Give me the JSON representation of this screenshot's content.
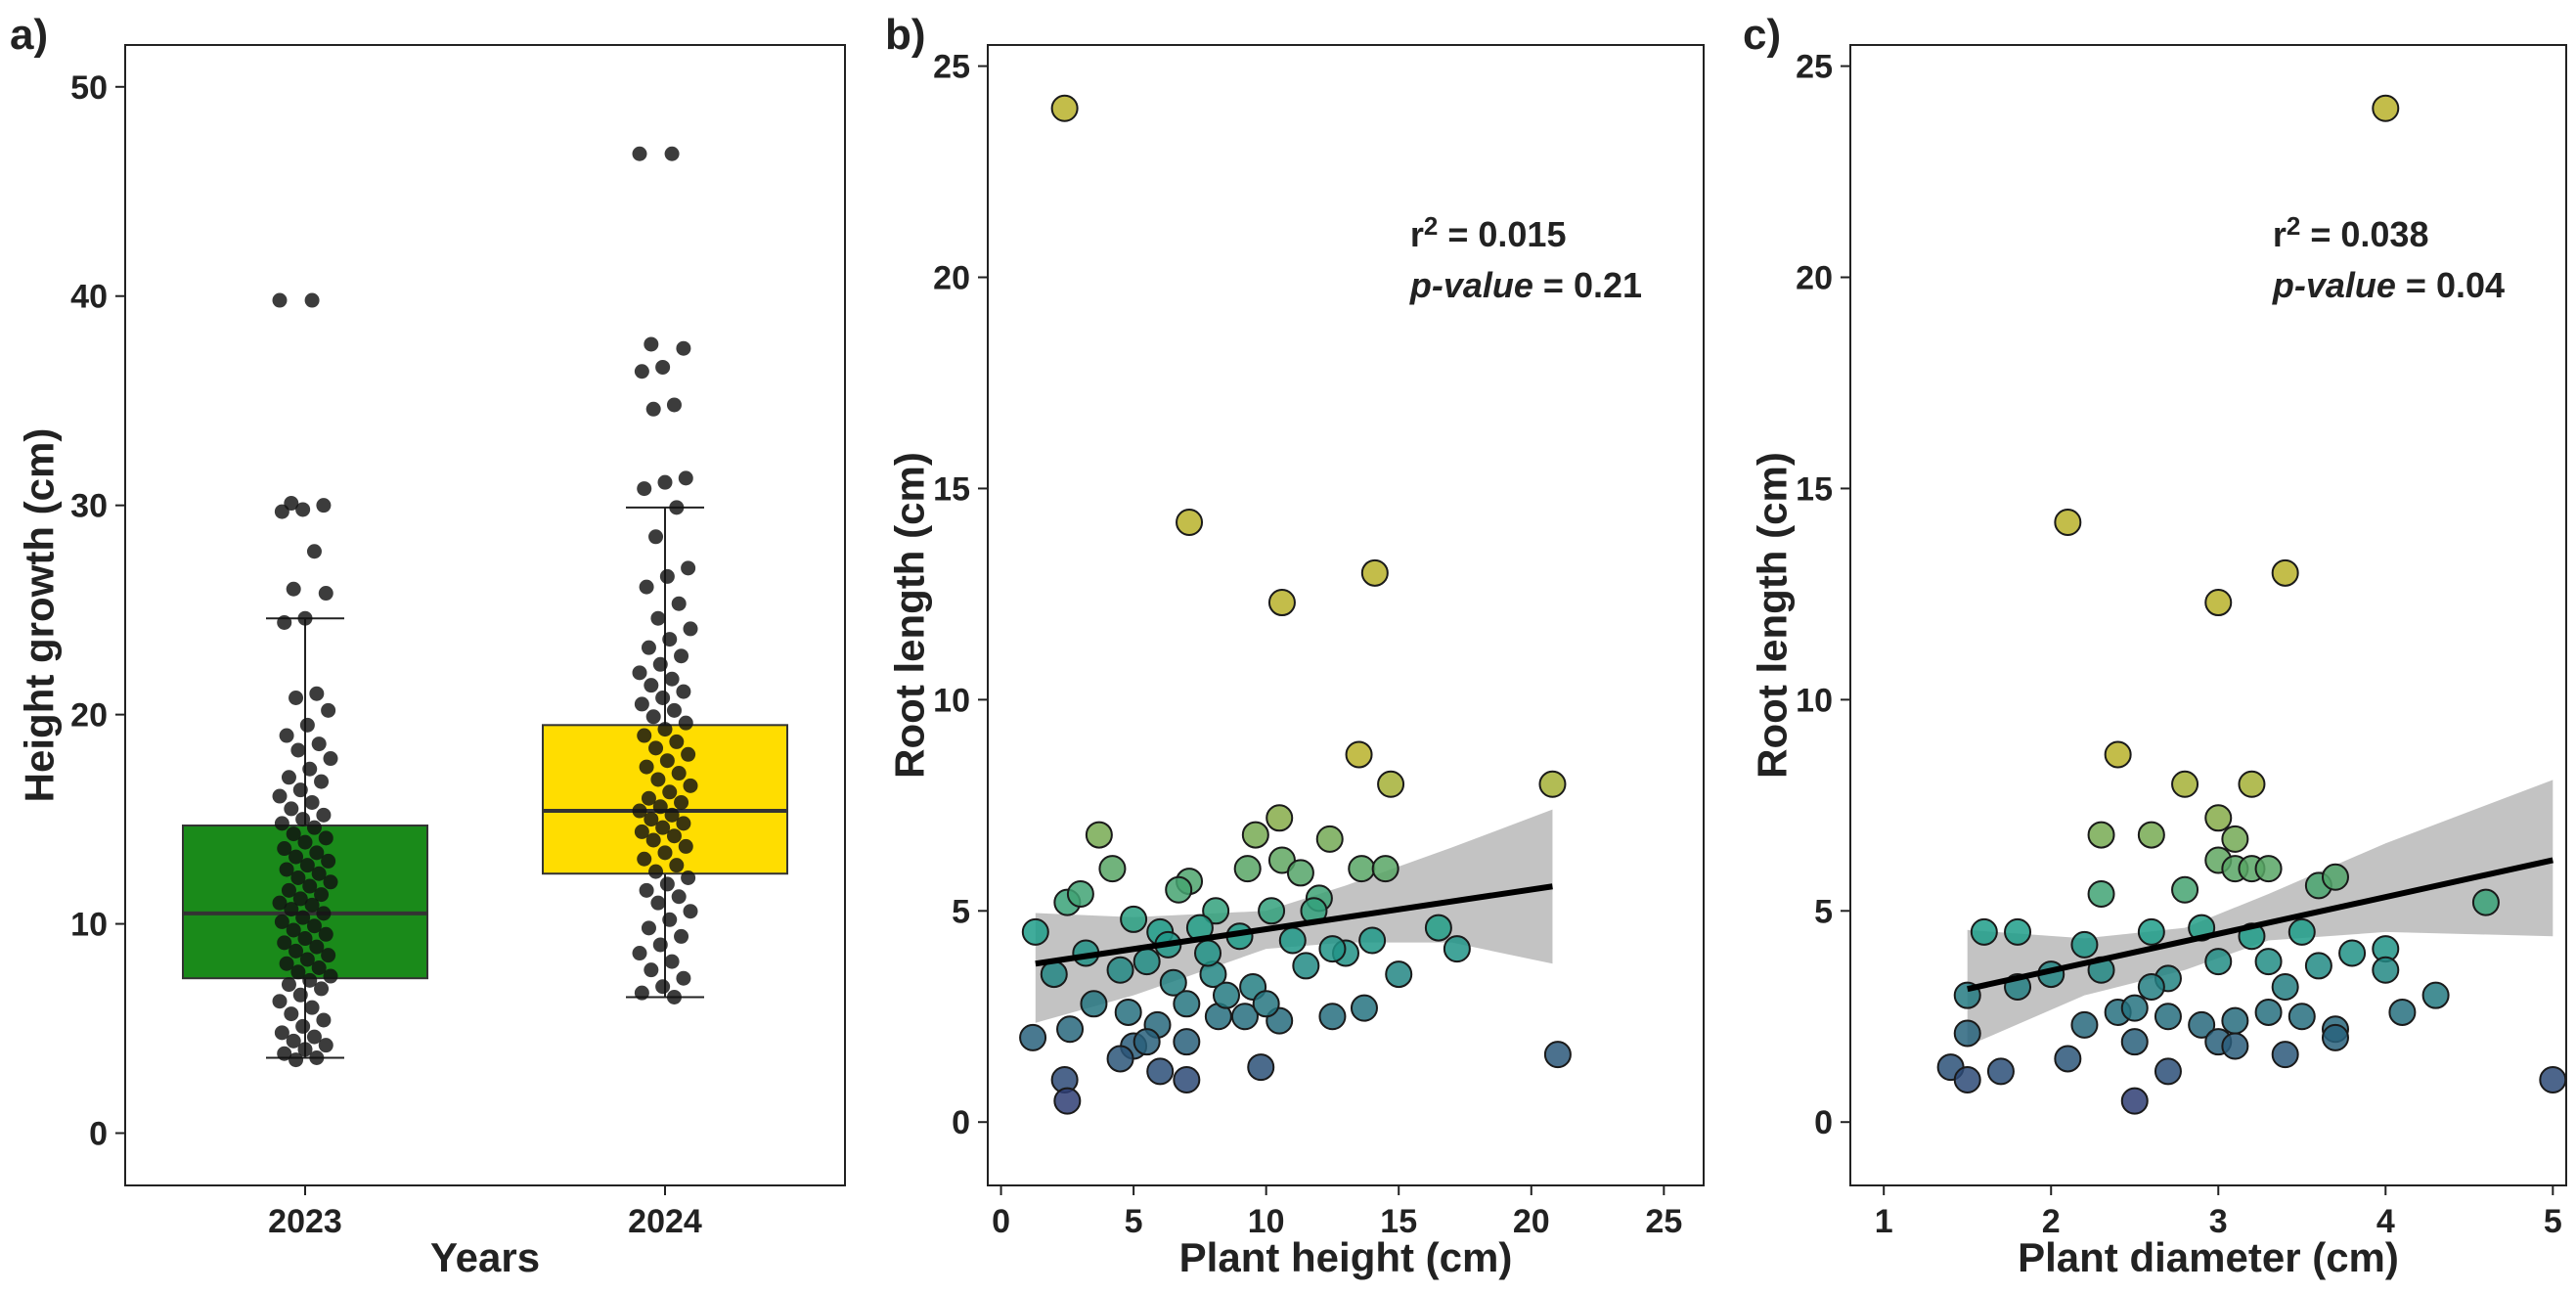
{
  "panel_labels": [
    "a)",
    "b)",
    "c)"
  ],
  "colors": {
    "box_2023": "#1a8a1a",
    "box_2024": "#ffdd00",
    "jitter": "#111111",
    "fit_line": "#000000",
    "ci_band": "#bdbdbd",
    "viridis_low": "#2f3e74",
    "viridis_mid": "#1f9e89",
    "viridis_high": "#b8b22a"
  },
  "chart_data": [
    {
      "type": "box",
      "panel": "a)",
      "xlabel": "Years",
      "ylabel": "Height growth (cm)",
      "ylim": [
        -2.5,
        52
      ],
      "yticks": [
        0,
        10,
        20,
        30,
        40,
        50
      ],
      "categories": [
        "2023",
        "2024"
      ],
      "boxes": [
        {
          "name": "2023",
          "q1": 7.4,
          "median": 10.5,
          "q3": 14.7,
          "whisker_low": 3.6,
          "whisker_high": 24.6,
          "points": [
            39.8,
            39.8,
            30.1,
            30.0,
            29.8,
            29.7,
            27.8,
            26.0,
            25.8,
            24.6,
            24.4,
            21.0,
            20.8,
            20.2,
            19.5,
            19.0,
            18.6,
            18.3,
            17.9,
            17.4,
            17.0,
            16.8,
            16.4,
            16.1,
            15.8,
            15.5,
            15.2,
            15.0,
            14.8,
            14.6,
            14.3,
            14.1,
            13.9,
            13.6,
            13.4,
            13.2,
            13.0,
            12.8,
            12.6,
            12.4,
            12.2,
            12.0,
            11.8,
            11.6,
            11.4,
            11.2,
            11.0,
            10.9,
            10.7,
            10.5,
            10.3,
            10.1,
            9.9,
            9.7,
            9.5,
            9.3,
            9.1,
            8.9,
            8.7,
            8.5,
            8.3,
            8.1,
            7.9,
            7.7,
            7.5,
            7.3,
            7.1,
            6.9,
            6.6,
            6.3,
            6.0,
            5.7,
            5.4,
            5.1,
            4.8,
            4.6,
            4.4,
            4.2,
            4.0,
            3.8,
            3.6,
            3.5
          ]
        },
        {
          "name": "2024",
          "q1": 12.4,
          "median": 15.4,
          "q3": 19.5,
          "whisker_low": 6.5,
          "whisker_high": 29.9,
          "points": [
            46.8,
            46.8,
            37.7,
            37.5,
            36.6,
            36.4,
            34.8,
            34.6,
            31.3,
            31.1,
            30.8,
            29.9,
            28.5,
            27.0,
            26.6,
            26.1,
            25.3,
            24.6,
            24.1,
            23.6,
            23.2,
            22.8,
            22.4,
            22.0,
            21.7,
            21.4,
            21.1,
            20.8,
            20.5,
            20.2,
            19.9,
            19.6,
            19.3,
            19.0,
            18.7,
            18.4,
            18.1,
            17.8,
            17.5,
            17.2,
            16.9,
            16.6,
            16.3,
            16.0,
            15.8,
            15.6,
            15.4,
            15.2,
            15.0,
            14.8,
            14.6,
            14.4,
            14.2,
            14.0,
            13.7,
            13.4,
            13.1,
            12.8,
            12.5,
            12.2,
            11.9,
            11.6,
            11.3,
            11.0,
            10.6,
            10.2,
            9.8,
            9.4,
            9.0,
            8.6,
            8.2,
            7.8,
            7.4,
            7.0,
            6.7,
            6.5
          ]
        }
      ]
    },
    {
      "type": "scatter",
      "panel": "b)",
      "xlabel": "Plant height (cm)",
      "ylabel": "Root length (cm)",
      "xlim": [
        -0.5,
        26.5
      ],
      "ylim": [
        -1.5,
        25.5
      ],
      "xticks": [
        0,
        5,
        10,
        15,
        20,
        25
      ],
      "yticks": [
        0,
        5,
        10,
        15,
        20,
        25
      ],
      "annotation": {
        "r2_prefix": "r",
        "r2_sup": "2",
        "r2_value": " = 0.015",
        "p_label": "p-value",
        "p_value": " = 0.21"
      },
      "fit": {
        "x0": 1.3,
        "y0": 3.75,
        "x1": 20.8,
        "y1": 5.58
      },
      "ci": {
        "upper": [
          [
            1.3,
            4.95
          ],
          [
            5,
            4.85
          ],
          [
            10,
            5.0
          ],
          [
            13,
            5.6
          ],
          [
            17,
            6.5
          ],
          [
            20.8,
            7.4
          ]
        ],
        "lower": [
          [
            20.8,
            3.75
          ],
          [
            17,
            4.25
          ],
          [
            13,
            4.25
          ],
          [
            10,
            4.1
          ],
          [
            5,
            3.0
          ],
          [
            1.3,
            2.35
          ]
        ]
      },
      "points": [
        [
          2.4,
          24.0
        ],
        [
          7.1,
          14.2
        ],
        [
          10.6,
          12.3
        ],
        [
          14.1,
          13.0
        ],
        [
          13.5,
          8.7
        ],
        [
          14.7,
          8.0
        ],
        [
          20.8,
          8.0
        ],
        [
          3.7,
          6.8
        ],
        [
          9.6,
          6.8
        ],
        [
          10.5,
          7.2
        ],
        [
          12.4,
          6.7
        ],
        [
          4.2,
          6.0
        ],
        [
          9.3,
          6.0
        ],
        [
          10.6,
          6.2
        ],
        [
          13.6,
          6.0
        ],
        [
          14.5,
          6.0
        ],
        [
          11.3,
          5.9
        ],
        [
          7.1,
          5.7
        ],
        [
          6.7,
          5.5
        ],
        [
          2.5,
          5.2
        ],
        [
          3.0,
          5.4
        ],
        [
          8.1,
          5.0
        ],
        [
          10.2,
          5.0
        ],
        [
          12.0,
          5.3
        ],
        [
          5.0,
          4.8
        ],
        [
          6.0,
          4.5
        ],
        [
          7.5,
          4.6
        ],
        [
          9.0,
          4.4
        ],
        [
          11.0,
          4.3
        ],
        [
          13.0,
          4.0
        ],
        [
          16.5,
          4.6
        ],
        [
          17.2,
          4.1
        ],
        [
          1.3,
          4.5
        ],
        [
          2.0,
          3.5
        ],
        [
          3.2,
          4.0
        ],
        [
          4.5,
          3.6
        ],
        [
          5.5,
          3.8
        ],
        [
          6.5,
          3.3
        ],
        [
          8.0,
          3.5
        ],
        [
          9.5,
          3.2
        ],
        [
          11.5,
          3.7
        ],
        [
          12.5,
          4.1
        ],
        [
          14.0,
          4.3
        ],
        [
          1.2,
          2.0
        ],
        [
          2.6,
          2.2
        ],
        [
          3.5,
          2.8
        ],
        [
          4.8,
          2.6
        ],
        [
          5.9,
          2.3
        ],
        [
          7.0,
          2.8
        ],
        [
          8.2,
          2.5
        ],
        [
          9.2,
          2.5
        ],
        [
          10.5,
          2.4
        ],
        [
          12.5,
          2.5
        ],
        [
          13.7,
          2.7
        ],
        [
          15.0,
          3.5
        ],
        [
          5.0,
          1.8
        ],
        [
          5.5,
          1.9
        ],
        [
          7.0,
          1.9
        ],
        [
          4.5,
          1.5
        ],
        [
          6.0,
          1.2
        ],
        [
          7.0,
          1.0
        ],
        [
          9.8,
          1.3
        ],
        [
          2.4,
          1.0
        ],
        [
          2.5,
          0.5
        ],
        [
          21.0,
          1.6
        ],
        [
          8.5,
          3.0
        ],
        [
          10.0,
          2.8
        ],
        [
          6.3,
          4.2
        ],
        [
          7.8,
          4.0
        ],
        [
          11.8,
          5.0
        ]
      ]
    },
    {
      "type": "scatter",
      "panel": "c)",
      "xlabel": "Plant diameter (cm)",
      "ylabel": "Root length (cm)",
      "xlim": [
        0.8,
        5.08
      ],
      "ylim": [
        -1.5,
        25.5
      ],
      "xticks": [
        1,
        2,
        3,
        4,
        5
      ],
      "yticks": [
        0,
        5,
        10,
        15,
        20,
        25
      ],
      "annotation": {
        "r2_prefix": "r",
        "r2_sup": "2",
        "r2_value": " = 0.038",
        "p_label": "p-value",
        "p_value": " = 0.04"
      },
      "fit": {
        "x0": 1.5,
        "y0": 3.15,
        "x1": 5.0,
        "y1": 6.2
      },
      "ci": {
        "upper": [
          [
            1.5,
            4.55
          ],
          [
            2.2,
            4.35
          ],
          [
            2.8,
            4.6
          ],
          [
            3.3,
            5.4
          ],
          [
            4.0,
            6.6
          ],
          [
            5.0,
            8.1
          ]
        ],
        "lower": [
          [
            5.0,
            4.4
          ],
          [
            4.0,
            4.5
          ],
          [
            3.3,
            4.3
          ],
          [
            2.8,
            3.6
          ],
          [
            2.2,
            3.0
          ],
          [
            1.5,
            1.8
          ]
        ]
      },
      "points": [
        [
          4.0,
          24.0
        ],
        [
          2.1,
          14.2
        ],
        [
          3.4,
          13.0
        ],
        [
          3.0,
          12.3
        ],
        [
          2.4,
          8.7
        ],
        [
          2.8,
          8.0
        ],
        [
          3.2,
          8.0
        ],
        [
          2.3,
          6.8
        ],
        [
          2.6,
          6.8
        ],
        [
          3.0,
          7.2
        ],
        [
          3.1,
          6.7
        ],
        [
          3.0,
          6.2
        ],
        [
          3.1,
          6.0
        ],
        [
          3.2,
          6.0
        ],
        [
          3.3,
          6.0
        ],
        [
          2.3,
          5.4
        ],
        [
          2.8,
          5.5
        ],
        [
          3.6,
          5.6
        ],
        [
          3.7,
          5.8
        ],
        [
          4.6,
          5.2
        ],
        [
          1.6,
          4.5
        ],
        [
          1.8,
          4.5
        ],
        [
          2.2,
          4.2
        ],
        [
          2.6,
          4.5
        ],
        [
          2.9,
          4.6
        ],
        [
          3.2,
          4.4
        ],
        [
          3.5,
          4.5
        ],
        [
          3.8,
          4.0
        ],
        [
          4.0,
          4.1
        ],
        [
          1.5,
          3.0
        ],
        [
          1.8,
          3.2
        ],
        [
          2.0,
          3.5
        ],
        [
          2.3,
          3.6
        ],
        [
          2.7,
          3.4
        ],
        [
          3.0,
          3.8
        ],
        [
          3.3,
          3.8
        ],
        [
          3.6,
          3.7
        ],
        [
          4.0,
          3.6
        ],
        [
          2.2,
          2.3
        ],
        [
          2.4,
          2.6
        ],
        [
          2.5,
          2.7
        ],
        [
          2.7,
          2.5
        ],
        [
          2.9,
          2.3
        ],
        [
          3.1,
          2.4
        ],
        [
          3.3,
          2.6
        ],
        [
          3.5,
          2.5
        ],
        [
          3.7,
          2.2
        ],
        [
          4.1,
          2.6
        ],
        [
          4.3,
          3.0
        ],
        [
          2.1,
          1.5
        ],
        [
          2.5,
          1.9
        ],
        [
          3.0,
          1.9
        ],
        [
          3.1,
          1.8
        ],
        [
          3.4,
          1.6
        ],
        [
          3.7,
          2.0
        ],
        [
          1.4,
          1.3
        ],
        [
          1.5,
          1.0
        ],
        [
          1.7,
          1.2
        ],
        [
          2.7,
          1.2
        ],
        [
          2.5,
          0.5
        ],
        [
          5.0,
          1.0
        ],
        [
          1.5,
          2.1
        ],
        [
          2.6,
          3.2
        ],
        [
          3.4,
          3.2
        ]
      ]
    }
  ]
}
